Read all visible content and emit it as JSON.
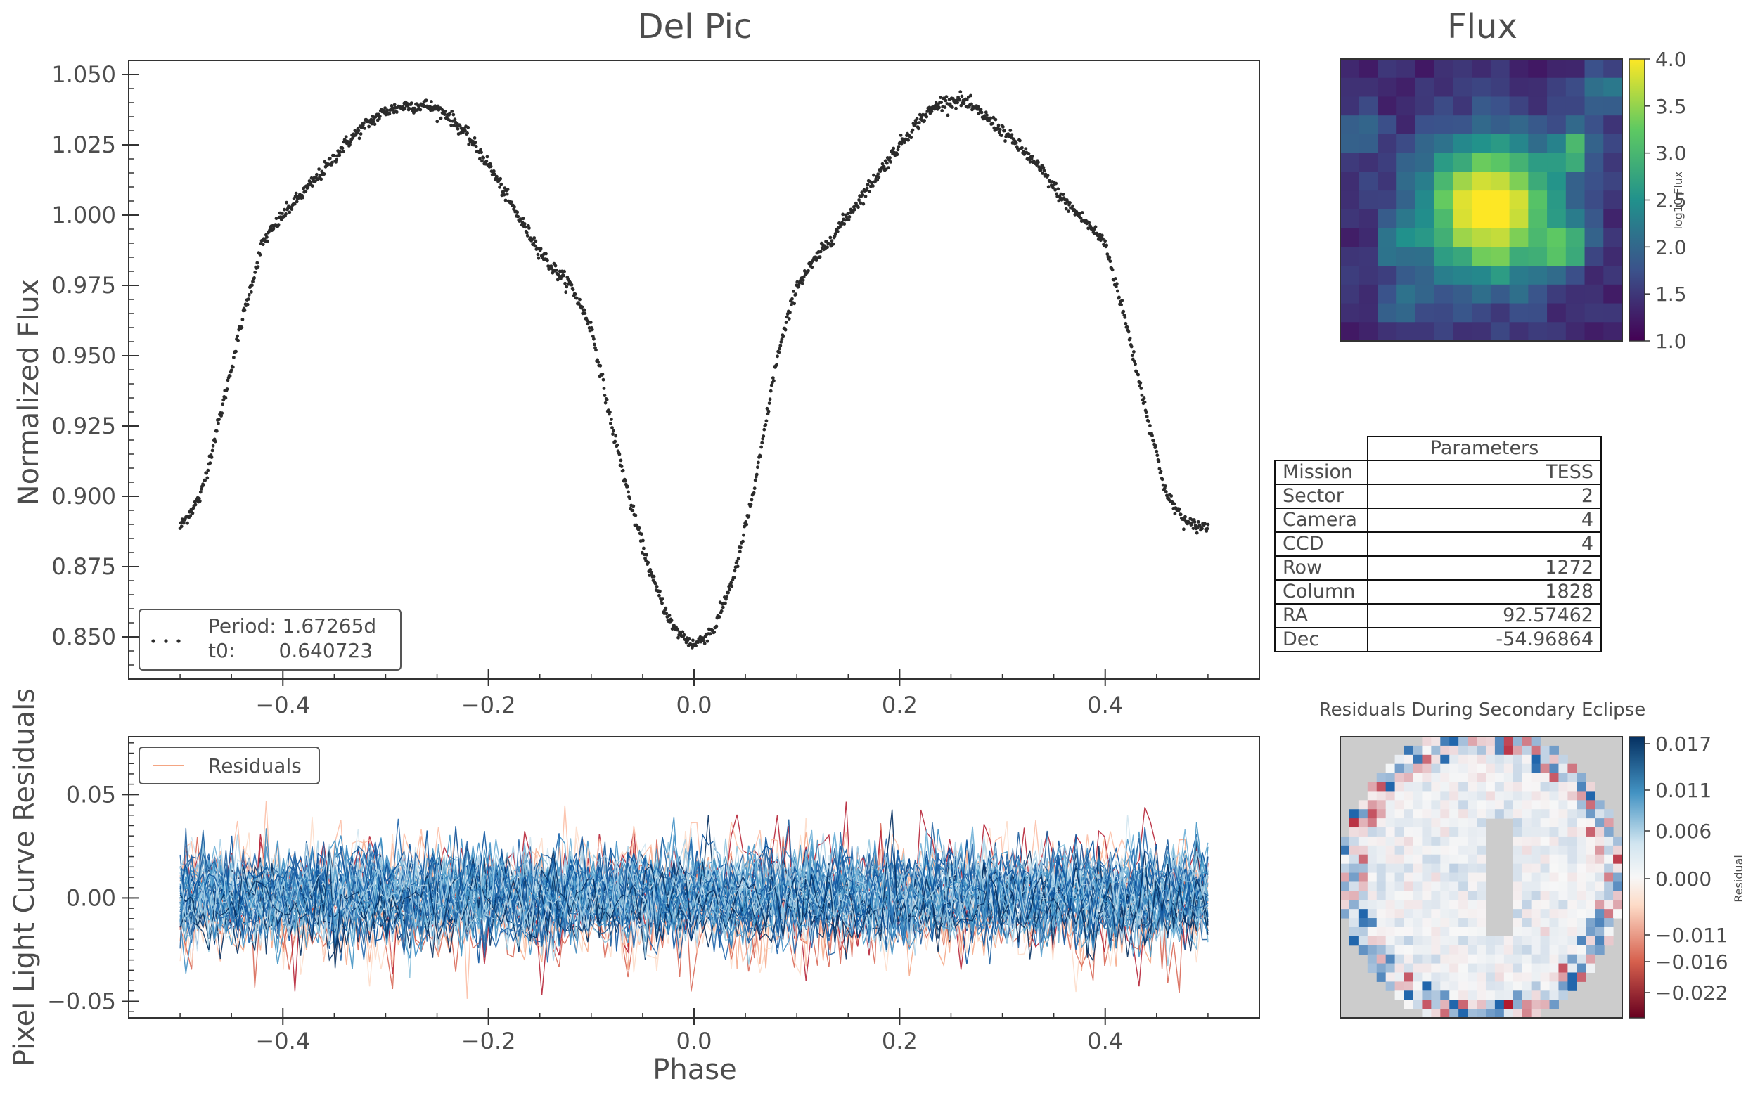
{
  "chart_data": [
    {
      "type": "scatter",
      "title": "Del Pic",
      "xlabel": "",
      "ylabel": "Normalized Flux",
      "xlim": [
        -0.55,
        0.55
      ],
      "ylim": [
        0.835,
        1.055
      ],
      "xticks": [
        "−0.4",
        "−0.2",
        "0.0",
        "0.2",
        "0.4"
      ],
      "yticks": [
        "1.050",
        "1.025",
        "1.000",
        "0.975",
        "0.950",
        "0.925",
        "0.900",
        "0.875",
        "0.850"
      ],
      "legend": {
        "placement": "lower-left",
        "line1": "Period: 1.67265d",
        "line2": "t0:       0.640723"
      },
      "points_description": "phase-folded light curve",
      "x": [
        -0.5,
        -0.48,
        -0.46,
        -0.44,
        -0.42,
        -0.4,
        -0.38,
        -0.36,
        -0.34,
        -0.32,
        -0.3,
        -0.28,
        -0.26,
        -0.24,
        -0.22,
        -0.2,
        -0.18,
        -0.16,
        -0.14,
        -0.12,
        -0.1,
        -0.08,
        -0.06,
        -0.04,
        -0.02,
        0.0,
        0.02,
        0.04,
        0.06,
        0.08,
        0.1,
        0.12,
        0.14,
        0.16,
        0.18,
        0.2,
        0.22,
        0.24,
        0.26,
        0.28,
        0.3,
        0.32,
        0.34,
        0.36,
        0.38,
        0.4,
        0.42,
        0.44,
        0.46,
        0.48,
        0.5
      ],
      "y": [
        0.889,
        0.9,
        0.93,
        0.962,
        0.99,
        1.0,
        1.008,
        1.016,
        1.025,
        1.032,
        1.037,
        1.039,
        1.039,
        1.036,
        1.028,
        1.018,
        1.005,
        0.993,
        0.982,
        0.975,
        0.96,
        0.925,
        0.895,
        0.87,
        0.853,
        0.847,
        0.853,
        0.873,
        0.905,
        0.948,
        0.975,
        0.985,
        0.995,
        1.005,
        1.015,
        1.025,
        1.034,
        1.04,
        1.041,
        1.036,
        1.03,
        1.023,
        1.015,
        1.005,
        0.998,
        0.99,
        0.962,
        0.93,
        0.9,
        0.89,
        0.889
      ]
    },
    {
      "type": "line",
      "title": "",
      "xlabel": "Phase",
      "ylabel": "Pixel Light Curve Residuals",
      "xlim": [
        -0.55,
        0.55
      ],
      "ylim": [
        -0.058,
        0.078
      ],
      "xticks": [
        "−0.4",
        "−0.2",
        "0.0",
        "0.2",
        "0.4"
      ],
      "yticks": [
        "0.05",
        "0.00",
        "−0.05"
      ],
      "legend": {
        "placement": "top-left",
        "label": "Residuals"
      },
      "series_count": 60,
      "noise_std": 0.015
    },
    {
      "type": "heatmap",
      "title": "Flux",
      "colorbar_label": "log10 Flux",
      "colorbar_ticks": [
        "4.0",
        "3.5",
        "3.0",
        "2.5",
        "2.0",
        "1.5",
        "1.0"
      ],
      "vmin": 1.0,
      "vmax": 4.0,
      "grid": [
        15,
        15
      ]
    },
    {
      "type": "heatmap",
      "title": "Residuals During Secondary Eclipse",
      "colorbar_label": "Residual",
      "colorbar_ticks": [
        "0.017",
        "0.011",
        "0.006",
        "0.000",
        "−0.011",
        "−0.016",
        "−0.022"
      ],
      "grid": [
        31,
        31
      ]
    }
  ],
  "table": {
    "header": "Parameters",
    "rows": [
      {
        "key": "Mission",
        "value": "TESS"
      },
      {
        "key": "Sector",
        "value": "2"
      },
      {
        "key": "Camera",
        "value": "4"
      },
      {
        "key": "CCD",
        "value": "4"
      },
      {
        "key": "Row",
        "value": "1272"
      },
      {
        "key": "Column",
        "value": "1828"
      },
      {
        "key": "RA",
        "value": "92.57462"
      },
      {
        "key": "Dec",
        "value": "-54.96864"
      }
    ]
  },
  "colors": {
    "points": "#2b2b2b",
    "axis": "#333333",
    "viridis_low": "#440154",
    "viridis_high": "#fde725",
    "rdbu_blue": "#2166ac",
    "rdbu_red": "#b2182b",
    "masked": "#cccccc"
  }
}
